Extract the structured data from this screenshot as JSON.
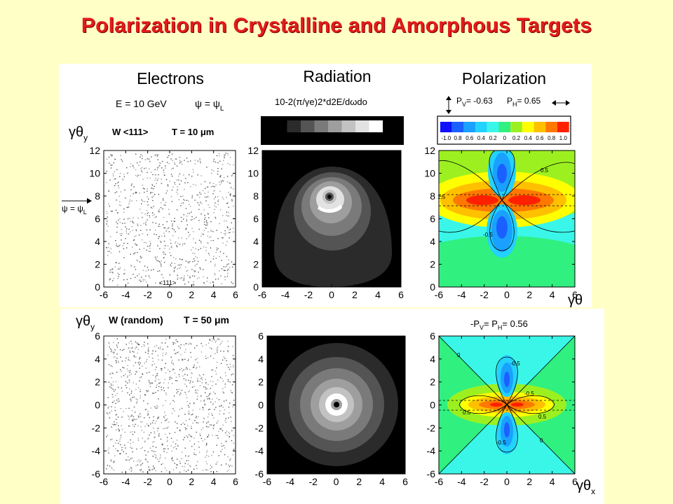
{
  "title": "Polarization in Crystalline and Amorphous Targets",
  "headers": {
    "electrons": "Electrons",
    "radiation": "Radiation",
    "polarization": "Polarization"
  },
  "top": {
    "energy": "E = 10 GeV",
    "psi_eq": "ψ = ψ",
    "psi_sub": "L",
    "sample": "W <111>",
    "thickness": "T = 10 μm",
    "psi_arrow": "ψ = ψ",
    "psi_arrow_sub": "L",
    "crystal_axis": "<111>",
    "radiation_formula": "10-2(π/γe)2*d2E/dωdo",
    "pv": "P",
    "pv_sub": "V",
    "pv_val": "= -0.63",
    "ph": "P",
    "ph_sub": "H",
    "ph_val": "= 0.65",
    "contour_labels": [
      "0.5",
      "-0.5",
      "1.5"
    ]
  },
  "bottom": {
    "sample": "W (random)",
    "thickness": "T = 50 μm",
    "pol_formula": "-P",
    "pol_formula_sub": "V",
    "pol_formula_rest": "=  P",
    "pol_formula_sub2": "H",
    "pol_formula_val": "= 0.56",
    "contour_labels": [
      "0",
      "-0.5",
      "-0.5",
      "0.5",
      "0.5",
      "-0.5",
      "0"
    ]
  },
  "axis_symbols": {
    "theta_y": "γθ",
    "y_sub": "y",
    "theta_x": "γθ",
    "x_sub": "x"
  },
  "gray_colorbar": {
    "ticks": [
      "0",
      "5",
      "10",
      "15",
      "20",
      "25",
      "30",
      "35"
    ],
    "colors": [
      "#000000",
      "#2b2b2b",
      "#545454",
      "#7a7a7a",
      "#9e9e9e",
      "#c2c2c2",
      "#e2e2e2",
      "#ffffff"
    ]
  },
  "pol_colorbar": {
    "ticks": [
      "-1.0",
      "0.8",
      "0.6",
      "0.4",
      "0.2",
      "0",
      "0.2",
      "0.4",
      "0.6",
      "0.8",
      "1.0"
    ],
    "colors": [
      "#1010ff",
      "#1a60ff",
      "#1aa0ff",
      "#22d2ff",
      "#3af6e8",
      "#30f080",
      "#9cf020",
      "#ffff00",
      "#ffc000",
      "#ff7800",
      "#ff2000"
    ]
  },
  "chart_data": [
    {
      "type": "scatter",
      "title": "Electrons (W <111>, T = 10 μm)",
      "xlim": [
        -6,
        6
      ],
      "ylim": [
        0,
        12
      ],
      "x_ticks": [
        "-6",
        "-4",
        "-2",
        "0",
        "2",
        "4",
        "6"
      ],
      "y_ticks": [
        "0",
        "2",
        "4",
        "6",
        "8",
        "10",
        "12"
      ]
    },
    {
      "type": "heatmap",
      "title": "Radiation (W <111>)",
      "xlim": [
        -6,
        6
      ],
      "ylim": [
        0,
        12
      ],
      "x_ticks": [
        "-6",
        "-4",
        "-2",
        "0",
        "2",
        "4",
        "6"
      ],
      "y_ticks": [
        "0",
        "2",
        "4",
        "6",
        "8",
        "10",
        "12"
      ],
      "center": [
        0,
        7.5
      ]
    },
    {
      "type": "heatmap",
      "title": "Polarization (W <111>)",
      "xlim": [
        -6,
        6
      ],
      "ylim": [
        0,
        12
      ],
      "x_ticks": [
        "-6",
        "-4",
        "-2",
        "0",
        "2",
        "4",
        "6"
      ],
      "y_ticks": [
        "0",
        "2",
        "4",
        "6",
        "8",
        "10",
        "12"
      ],
      "center": [
        0,
        7.5
      ]
    },
    {
      "type": "scatter",
      "title": "Electrons (W random, T = 50 μm)",
      "xlim": [
        -6,
        6
      ],
      "ylim": [
        -6,
        6
      ],
      "x_ticks": [
        "-6",
        "-4",
        "-2",
        "0",
        "2",
        "4",
        "6"
      ],
      "y_ticks": [
        "-6",
        "-4",
        "-2",
        "0",
        "2",
        "4",
        "6"
      ]
    },
    {
      "type": "heatmap",
      "title": "Radiation (W random)",
      "xlim": [
        -6,
        6
      ],
      "ylim": [
        -6,
        6
      ],
      "x_ticks": [
        "-6",
        "-4",
        "-2",
        "0",
        "2",
        "4",
        "6"
      ],
      "y_ticks": [
        "-6",
        "-4",
        "-2",
        "0",
        "2",
        "4",
        "6"
      ],
      "center": [
        0,
        0
      ]
    },
    {
      "type": "heatmap",
      "title": "Polarization (W random)",
      "xlim": [
        -6,
        6
      ],
      "ylim": [
        -6,
        6
      ],
      "x_ticks": [
        "-6",
        "-4",
        "-2",
        "0",
        "2",
        "4",
        "6"
      ],
      "y_ticks": [
        "-6",
        "-4",
        "-2",
        "0",
        "2",
        "4",
        "6"
      ],
      "center": [
        0,
        0
      ]
    }
  ]
}
